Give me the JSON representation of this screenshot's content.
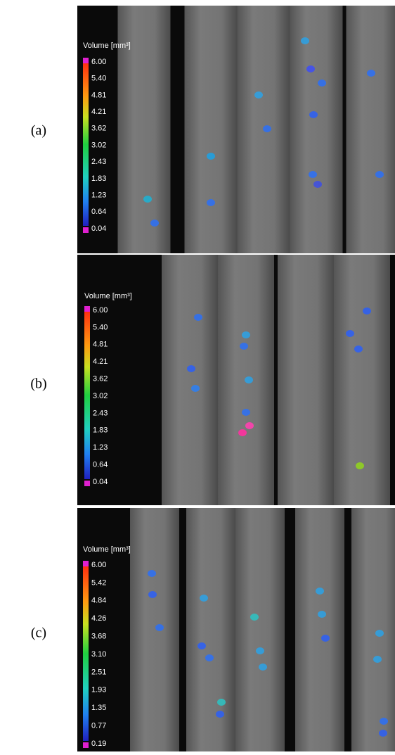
{
  "panels": [
    {
      "label": "(a)",
      "colorbar_title": "Volume [mm³]",
      "ticks": [
        "6.00",
        "5.40",
        "4.81",
        "4.21",
        "3.62",
        "3.02",
        "2.43",
        "1.83",
        "1.23",
        "0.64",
        "0.04"
      ]
    },
    {
      "label": "(b)",
      "colorbar_title": "Volume [mm³]",
      "ticks": [
        "6.00",
        "5.40",
        "4.81",
        "4.21",
        "3.62",
        "3.02",
        "2.43",
        "1.83",
        "1.23",
        "0.64",
        "0.04"
      ]
    },
    {
      "label": "(c)",
      "colorbar_title": "Volume [mm³]",
      "ticks": [
        "6.00",
        "5.42",
        "4.84",
        "4.26",
        "3.68",
        "3.10",
        "2.51",
        "1.93",
        "1.35",
        "0.77",
        "0.19"
      ]
    }
  ]
}
